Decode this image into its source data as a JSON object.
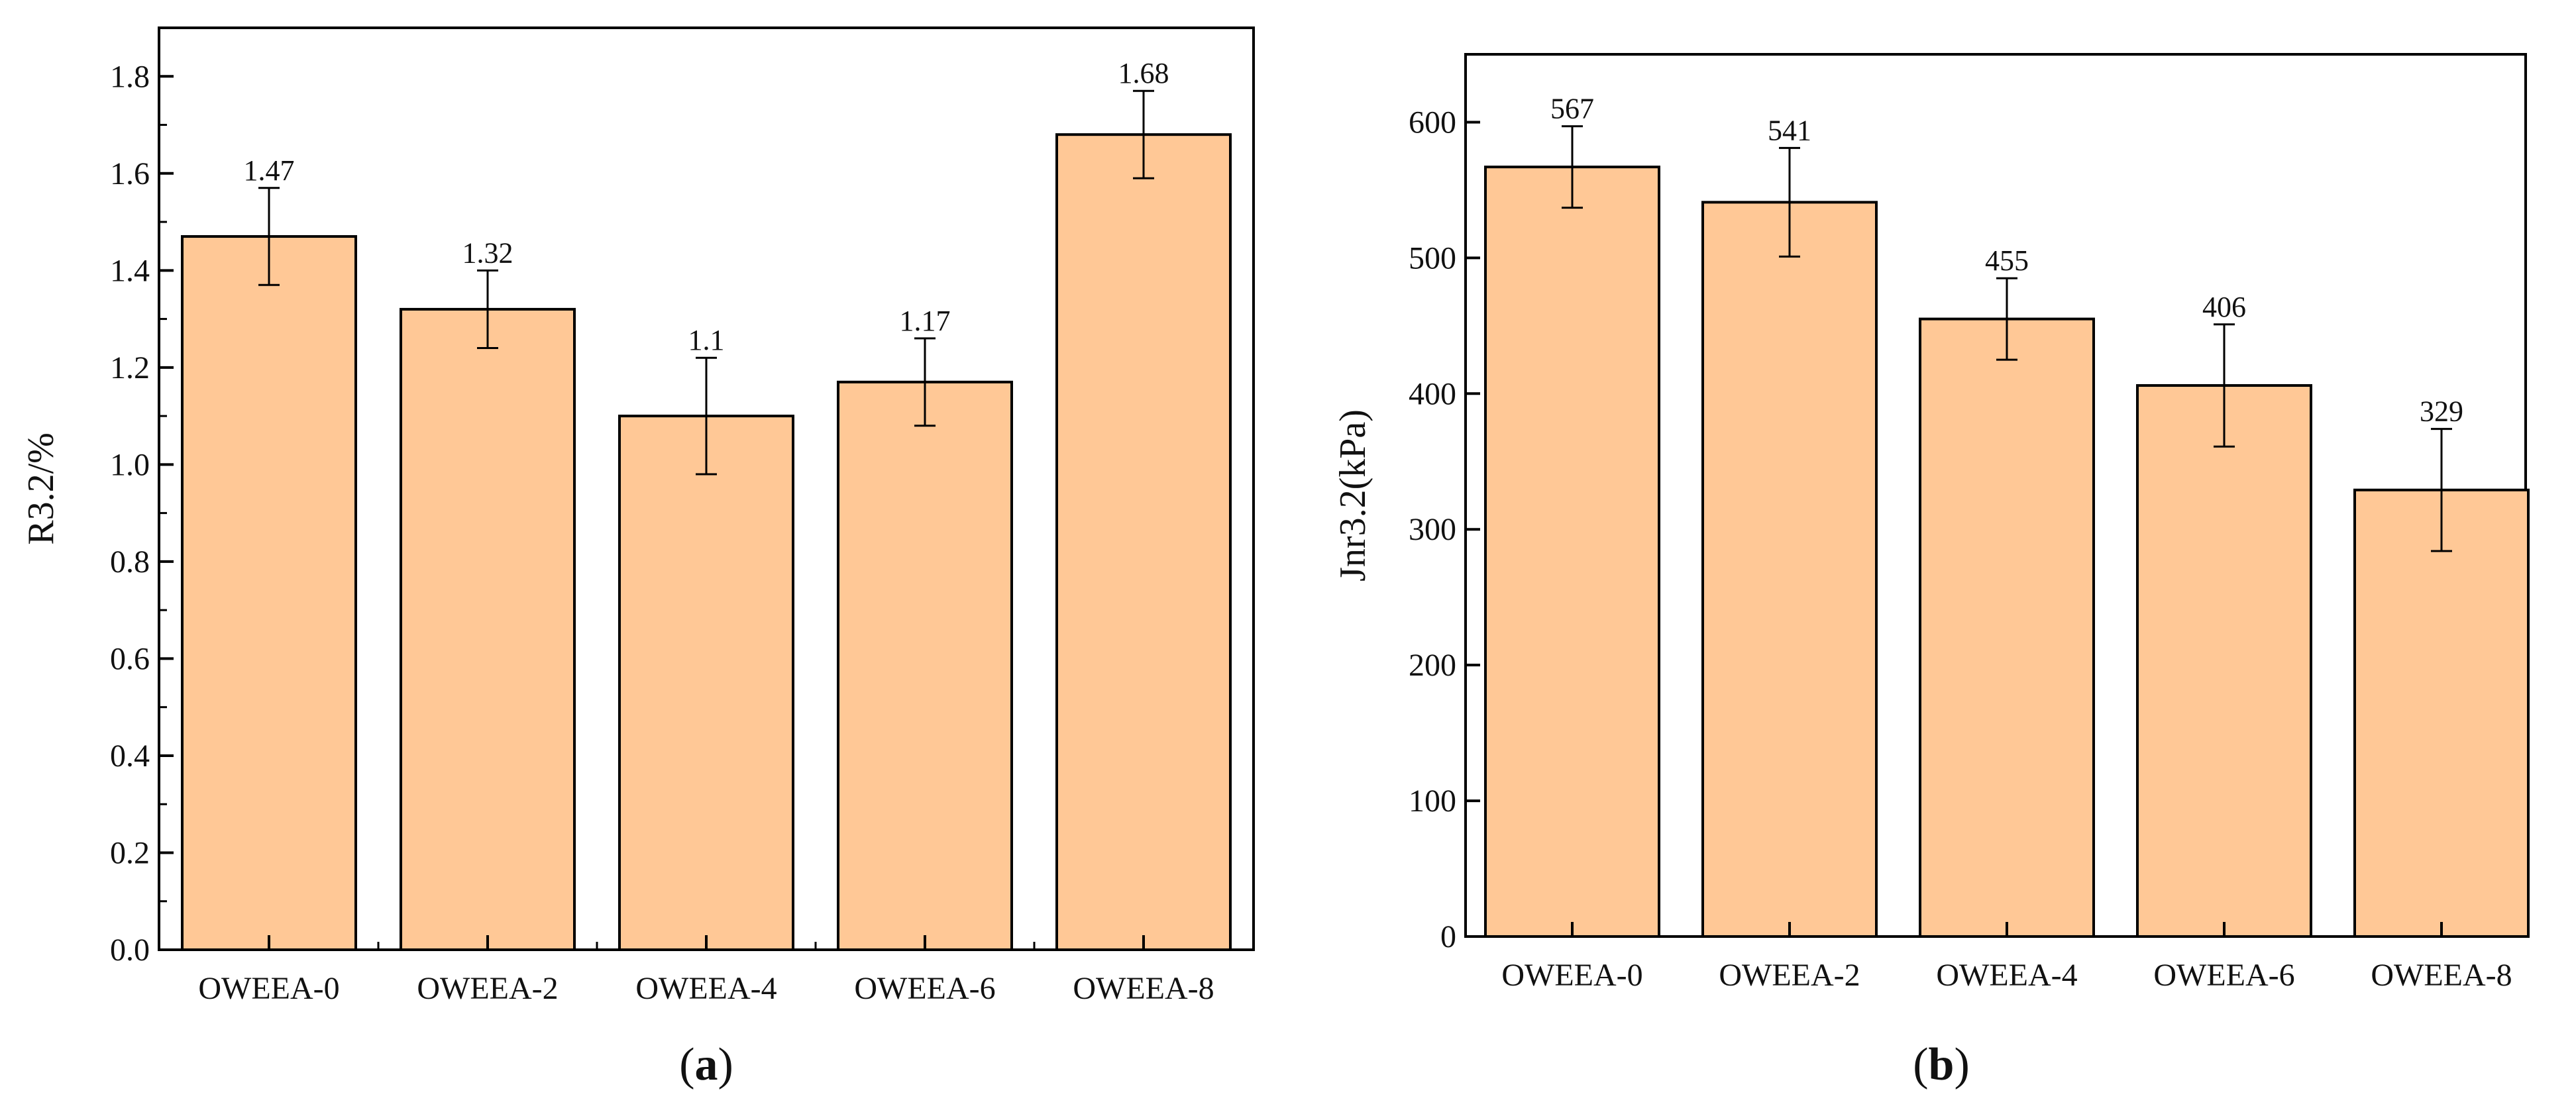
{
  "chart_data": [
    {
      "type": "bar",
      "panel": "a",
      "caption": {
        "open": "(",
        "letter": "a",
        "close": ")"
      },
      "categories": [
        "OWEEA-0",
        "OWEEA-2",
        "OWEEA-4",
        "OWEEA-6",
        "OWEEA-8"
      ],
      "values": [
        1.47,
        1.32,
        1.1,
        1.17,
        1.68
      ],
      "value_labels": [
        "1.47",
        "1.32",
        "1.1",
        "1.17",
        "1.68"
      ],
      "errors": [
        0.1,
        0.08,
        0.12,
        0.09,
        0.09
      ],
      "ylabel": "R3.2/%",
      "xlabel": "",
      "ylim": [
        0,
        1.9
      ],
      "yticks": [
        0,
        0.2,
        0.4,
        0.6,
        0.8,
        1.0,
        1.2,
        1.4,
        1.6,
        1.8
      ],
      "ytick_labels": [
        "0.0",
        "0.2",
        "0.4",
        "0.6",
        "0.8",
        "1.0",
        "1.2",
        "1.4",
        "1.6",
        "1.8"
      ],
      "bar_color": "#FFC896",
      "grid": false
    },
    {
      "type": "bar",
      "panel": "b",
      "caption": {
        "open": "(",
        "letter": "b",
        "close": ")"
      },
      "categories": [
        "OWEEA-0",
        "OWEEA-2",
        "OWEEA-4",
        "OWEEA-6",
        "OWEEA-8"
      ],
      "values": [
        567,
        541,
        455,
        406,
        329
      ],
      "value_labels": [
        "567",
        "541",
        "455",
        "406",
        "329"
      ],
      "errors": [
        30,
        40,
        30,
        45,
        45
      ],
      "ylabel": "Jnr3.2(kPa)",
      "xlabel": "",
      "ylim": [
        0,
        650
      ],
      "yticks": [
        0,
        100,
        200,
        300,
        400,
        500,
        600
      ],
      "ytick_labels": [
        "0",
        "100",
        "200",
        "300",
        "400",
        "500",
        "600"
      ],
      "bar_color": "#FFC896",
      "grid": false
    }
  ]
}
